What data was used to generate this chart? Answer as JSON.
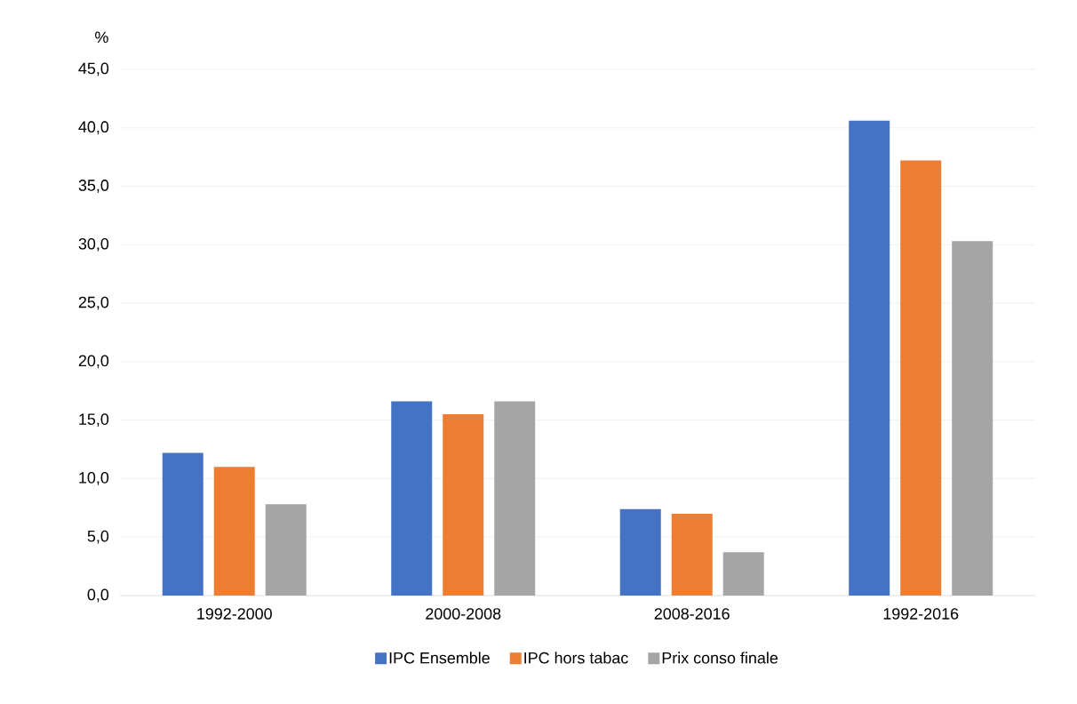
{
  "chart_data": {
    "type": "bar",
    "ylabel": "%",
    "categories": [
      "1992-2000",
      "2000-2008",
      "2008-2016",
      "1992-2016"
    ],
    "series": [
      {
        "name": "IPC Ensemble",
        "color": "#4472c4",
        "values": [
          12.2,
          16.6,
          7.4,
          40.6
        ]
      },
      {
        "name": "IPC hors tabac",
        "color": "#ed7d31",
        "values": [
          11.0,
          15.5,
          7.0,
          37.2
        ]
      },
      {
        "name": "Prix conso finale",
        "color": "#a5a5a5",
        "values": [
          7.8,
          16.6,
          3.7,
          30.3
        ]
      }
    ],
    "ylim": [
      0,
      45
    ],
    "yticks": [
      {
        "value": 0,
        "label": "0,0"
      },
      {
        "value": 5,
        "label": "5,0"
      },
      {
        "value": 10,
        "label": "10,0"
      },
      {
        "value": 15,
        "label": "15,0"
      },
      {
        "value": 20,
        "label": "20,0"
      },
      {
        "value": 25,
        "label": "25,0"
      },
      {
        "value": 30,
        "label": "30,0"
      },
      {
        "value": 35,
        "label": "35,0"
      },
      {
        "value": 40,
        "label": "40,0"
      },
      {
        "value": 45,
        "label": "45,0"
      }
    ],
    "grid": "y",
    "legend": "bottom"
  }
}
